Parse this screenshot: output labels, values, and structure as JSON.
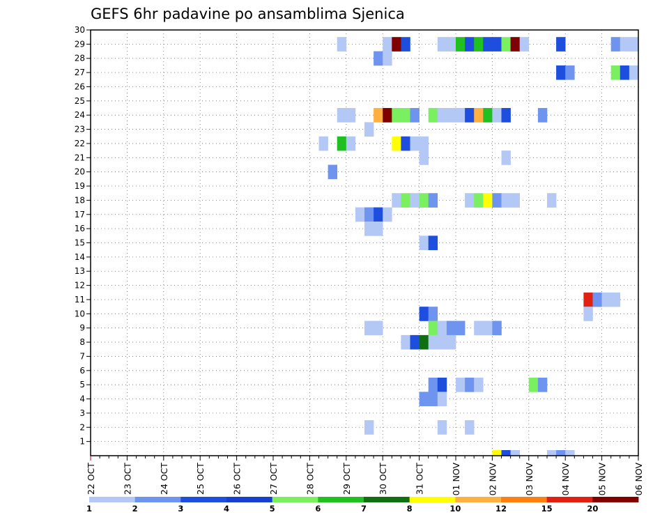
{
  "chart_data": {
    "type": "heatmap",
    "title": "GEFS 6hr padavine po ansamblima Sjenica",
    "y_ticks": [
      "1",
      "2",
      "3",
      "4",
      "5",
      "6",
      "7",
      "8",
      "9",
      "10",
      "11",
      "12",
      "13",
      "14",
      "15",
      "16",
      "17",
      "18",
      "19",
      "20",
      "21",
      "22",
      "23",
      "24",
      "25",
      "26",
      "27",
      "28",
      "29",
      "30"
    ],
    "ylim": [
      0,
      30
    ],
    "x_ticks": [
      "22 OCT",
      "23 OCT",
      "24 OCT",
      "25 OCT",
      "26 OCT",
      "27 OCT",
      "28 OCT",
      "29 OCT",
      "30 OCT",
      "31 OCT",
      "01 NOV",
      "02 NOV",
      "03 NOV",
      "04 NOV",
      "05 NOV",
      "06 NOV"
    ],
    "time_step_hours": 6,
    "grid": "dotted",
    "colorbar": {
      "labels": [
        "1",
        "2",
        "3",
        "4",
        "5",
        "6",
        "7",
        "8",
        "10",
        "12",
        "15",
        "20"
      ],
      "colors": [
        "#b4c8f5",
        "#6e94f0",
        "#1e4ede",
        "#1840d0",
        "#7af060",
        "#20c020",
        "#107010",
        "#ffff00",
        "#ffb040",
        "#ff8010",
        "#e02010",
        "#800000"
      ]
    },
    "cells": [
      {
        "member": 29,
        "t": 27,
        "level": 0
      },
      {
        "member": 29,
        "t": 32,
        "level": 0
      },
      {
        "member": 29,
        "t": 33,
        "level": 11
      },
      {
        "member": 29,
        "t": 34,
        "level": 2
      },
      {
        "member": 29,
        "t": 38,
        "level": 0
      },
      {
        "member": 29,
        "t": 39,
        "level": 0
      },
      {
        "member": 29,
        "t": 40,
        "level": 5
      },
      {
        "member": 29,
        "t": 41,
        "level": 2
      },
      {
        "member": 29,
        "t": 42,
        "level": 5
      },
      {
        "member": 29,
        "t": 43,
        "level": 2
      },
      {
        "member": 29,
        "t": 44,
        "level": 2
      },
      {
        "member": 29,
        "t": 45,
        "level": 4
      },
      {
        "member": 29,
        "t": 46,
        "level": 11
      },
      {
        "member": 29,
        "t": 47,
        "level": 0
      },
      {
        "member": 29,
        "t": 51,
        "level": 2
      },
      {
        "member": 29,
        "t": 57,
        "level": 1
      },
      {
        "member": 29,
        "t": 58,
        "level": 0
      },
      {
        "member": 29,
        "t": 59,
        "level": 0
      },
      {
        "member": 28,
        "t": 31,
        "level": 1
      },
      {
        "member": 28,
        "t": 32,
        "level": 0
      },
      {
        "member": 27,
        "t": 51,
        "level": 2
      },
      {
        "member": 27,
        "t": 52,
        "level": 1
      },
      {
        "member": 27,
        "t": 57,
        "level": 4
      },
      {
        "member": 27,
        "t": 58,
        "level": 2
      },
      {
        "member": 27,
        "t": 59,
        "level": 0
      },
      {
        "member": 24,
        "t": 27,
        "level": 0
      },
      {
        "member": 24,
        "t": 28,
        "level": 0
      },
      {
        "member": 24,
        "t": 31,
        "level": 8
      },
      {
        "member": 24,
        "t": 32,
        "level": 11
      },
      {
        "member": 24,
        "t": 33,
        "level": 4
      },
      {
        "member": 24,
        "t": 34,
        "level": 4
      },
      {
        "member": 24,
        "t": 35,
        "level": 1
      },
      {
        "member": 24,
        "t": 37,
        "level": 4
      },
      {
        "member": 24,
        "t": 38,
        "level": 0
      },
      {
        "member": 24,
        "t": 39,
        "level": 0
      },
      {
        "member": 24,
        "t": 40,
        "level": 0
      },
      {
        "member": 24,
        "t": 41,
        "level": 2
      },
      {
        "member": 24,
        "t": 42,
        "level": 8
      },
      {
        "member": 24,
        "t": 43,
        "level": 5
      },
      {
        "member": 24,
        "t": 44,
        "level": 0
      },
      {
        "member": 24,
        "t": 45,
        "level": 2
      },
      {
        "member": 24,
        "t": 49,
        "level": 1
      },
      {
        "member": 23,
        "t": 30,
        "level": 0
      },
      {
        "member": 22,
        "t": 25,
        "level": 0
      },
      {
        "member": 22,
        "t": 27,
        "level": 5
      },
      {
        "member": 22,
        "t": 28,
        "level": 0
      },
      {
        "member": 22,
        "t": 33,
        "level": 7
      },
      {
        "member": 22,
        "t": 34,
        "level": 2
      },
      {
        "member": 22,
        "t": 35,
        "level": 0
      },
      {
        "member": 22,
        "t": 36,
        "level": 0
      },
      {
        "member": 21,
        "t": 36,
        "level": 0
      },
      {
        "member": 21,
        "t": 45,
        "level": 0
      },
      {
        "member": 20,
        "t": 26,
        "level": 1
      },
      {
        "member": 18,
        "t": 33,
        "level": 0
      },
      {
        "member": 18,
        "t": 34,
        "level": 4
      },
      {
        "member": 18,
        "t": 35,
        "level": 0
      },
      {
        "member": 18,
        "t": 36,
        "level": 4
      },
      {
        "member": 18,
        "t": 37,
        "level": 1
      },
      {
        "member": 18,
        "t": 41,
        "level": 0
      },
      {
        "member": 18,
        "t": 42,
        "level": 4
      },
      {
        "member": 18,
        "t": 43,
        "level": 7
      },
      {
        "member": 18,
        "t": 44,
        "level": 1
      },
      {
        "member": 18,
        "t": 45,
        "level": 0
      },
      {
        "member": 18,
        "t": 46,
        "level": 0
      },
      {
        "member": 18,
        "t": 50,
        "level": 0
      },
      {
        "member": 17,
        "t": 29,
        "level": 0
      },
      {
        "member": 17,
        "t": 30,
        "level": 1
      },
      {
        "member": 17,
        "t": 31,
        "level": 2
      },
      {
        "member": 17,
        "t": 32,
        "level": 0
      },
      {
        "member": 16,
        "t": 30,
        "level": 0
      },
      {
        "member": 16,
        "t": 31,
        "level": 0
      },
      {
        "member": 15,
        "t": 36,
        "level": 0
      },
      {
        "member": 15,
        "t": 37,
        "level": 2
      },
      {
        "member": 11,
        "t": 54,
        "level": 10
      },
      {
        "member": 11,
        "t": 55,
        "level": 1
      },
      {
        "member": 11,
        "t": 56,
        "level": 0
      },
      {
        "member": 11,
        "t": 57,
        "level": 0
      },
      {
        "member": 10,
        "t": 36,
        "level": 2
      },
      {
        "member": 10,
        "t": 37,
        "level": 1
      },
      {
        "member": 10,
        "t": 54,
        "level": 0
      },
      {
        "member": 9,
        "t": 30,
        "level": 0
      },
      {
        "member": 9,
        "t": 31,
        "level": 0
      },
      {
        "member": 9,
        "t": 37,
        "level": 4
      },
      {
        "member": 9,
        "t": 38,
        "level": 0
      },
      {
        "member": 9,
        "t": 39,
        "level": 1
      },
      {
        "member": 9,
        "t": 40,
        "level": 1
      },
      {
        "member": 9,
        "t": 42,
        "level": 0
      },
      {
        "member": 9,
        "t": 43,
        "level": 0
      },
      {
        "member": 9,
        "t": 44,
        "level": 1
      },
      {
        "member": 8,
        "t": 34,
        "level": 0
      },
      {
        "member": 8,
        "t": 35,
        "level": 2
      },
      {
        "member": 8,
        "t": 36,
        "level": 6
      },
      {
        "member": 8,
        "t": 37,
        "level": 0
      },
      {
        "member": 8,
        "t": 38,
        "level": 0
      },
      {
        "member": 8,
        "t": 39,
        "level": 0
      },
      {
        "member": 5,
        "t": 37,
        "level": 1
      },
      {
        "member": 5,
        "t": 38,
        "level": 2
      },
      {
        "member": 5,
        "t": 40,
        "level": 0
      },
      {
        "member": 5,
        "t": 41,
        "level": 1
      },
      {
        "member": 5,
        "t": 42,
        "level": 0
      },
      {
        "member": 5,
        "t": 48,
        "level": 4
      },
      {
        "member": 5,
        "t": 49,
        "level": 1
      },
      {
        "member": 4,
        "t": 36,
        "level": 1
      },
      {
        "member": 4,
        "t": 37,
        "level": 1
      },
      {
        "member": 4,
        "t": 38,
        "level": 0
      },
      {
        "member": 2,
        "t": 30,
        "level": 0
      },
      {
        "member": 2,
        "t": 38,
        "level": 0
      },
      {
        "member": 2,
        "t": 41,
        "level": 0
      },
      {
        "member": 0,
        "t": 44,
        "level": 7
      },
      {
        "member": 0,
        "t": 45,
        "level": 2
      },
      {
        "member": 0,
        "t": 46,
        "level": 0
      },
      {
        "member": 0,
        "t": 50,
        "level": 0
      },
      {
        "member": 0,
        "t": 51,
        "level": 1
      },
      {
        "member": 0,
        "t": 52,
        "level": 0
      }
    ]
  }
}
